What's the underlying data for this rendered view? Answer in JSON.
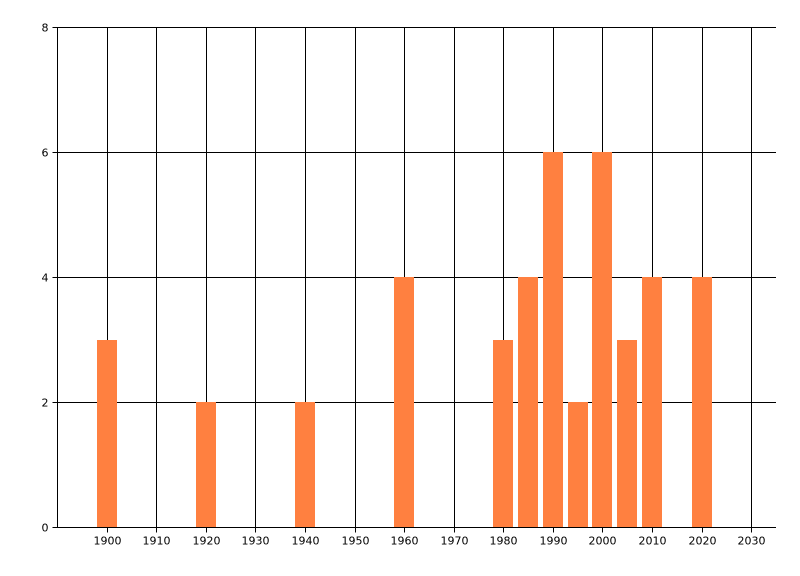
{
  "chart_data": {
    "type": "bar",
    "x": [
      1900,
      1920,
      1940,
      1960,
      1980,
      1985,
      1990,
      1995,
      2000,
      2005,
      2010,
      2020
    ],
    "values": [
      3,
      2,
      2,
      4,
      3,
      4,
      6,
      2,
      6,
      3,
      4,
      4
    ],
    "xlim": [
      1890,
      2035
    ],
    "ylim": [
      0,
      8
    ],
    "xticks": [
      1900,
      1910,
      1920,
      1930,
      1940,
      1950,
      1960,
      1970,
      1980,
      1990,
      2000,
      2010,
      2020,
      2030
    ],
    "yticks": [
      0,
      2,
      4,
      6,
      8
    ],
    "grid": true,
    "title": "",
    "xlabel": "",
    "ylabel": "",
    "bar_color": "#FF8040",
    "axis_color": "#000000"
  }
}
